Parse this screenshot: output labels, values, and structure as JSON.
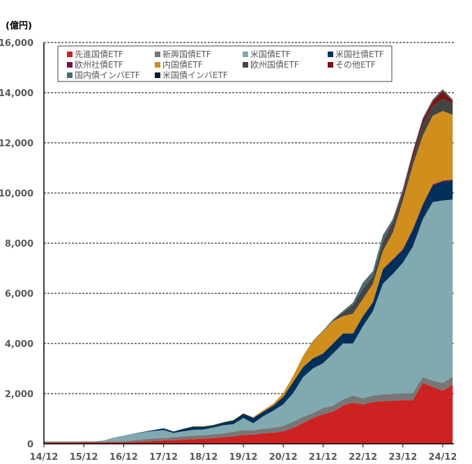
{
  "chart_data": {
    "type": "area",
    "stacked": true,
    "unit_label": "(億円)",
    "ylim": [
      0,
      16000
    ],
    "yticks": [
      0,
      2000,
      4000,
      6000,
      8000,
      10000,
      12000,
      14000,
      16000
    ],
    "ytick_labels": [
      "0",
      "2,000",
      "4,000",
      "6,000",
      "8,000",
      "10,000",
      "12,000",
      "14,000",
      "16,000"
    ],
    "xtick_labels": [
      "14/12",
      "15/12",
      "16/12",
      "17/12",
      "18/12",
      "19/12",
      "20/12",
      "21/12",
      "22/12",
      "23/12",
      "24/12"
    ],
    "grid": "horizontal dashed",
    "legend_placement": "top",
    "x": [
      "14/12",
      "15/03",
      "15/06",
      "15/09",
      "15/12",
      "16/03",
      "16/06",
      "16/09",
      "16/12",
      "17/03",
      "17/06",
      "17/09",
      "17/12",
      "18/03",
      "18/06",
      "18/09",
      "18/12",
      "19/03",
      "19/06",
      "19/09",
      "19/12",
      "20/03",
      "20/06",
      "20/09",
      "20/12",
      "21/03",
      "21/06",
      "21/09",
      "21/12",
      "22/03",
      "22/06",
      "22/09",
      "22/12",
      "23/03",
      "23/06",
      "23/09",
      "23/12",
      "24/03",
      "24/06",
      "24/09",
      "24/12",
      "25/03"
    ],
    "series": [
      {
        "name": "先進国債ETF",
        "color": "#CC2222",
        "values": [
          50,
          50,
          50,
          50,
          55,
          55,
          60,
          60,
          60,
          75,
          90,
          110,
          140,
          150,
          170,
          185,
          200,
          230,
          260,
          300,
          350,
          370,
          420,
          440,
          500,
          630,
          830,
          1030,
          1180,
          1280,
          1520,
          1640,
          1570,
          1670,
          1700,
          1720,
          1740,
          1740,
          2420,
          2270,
          2120,
          2370
        ]
      },
      {
        "name": "新興国債ETF",
        "color": "#777777",
        "values": [
          40,
          40,
          40,
          40,
          40,
          40,
          40,
          40,
          40,
          60,
          90,
          100,
          90,
          110,
          130,
          140,
          140,
          150,
          150,
          180,
          200,
          180,
          180,
          200,
          210,
          250,
          250,
          200,
          250,
          240,
          250,
          280,
          250,
          250,
          270,
          270,
          260,
          280,
          240,
          250,
          300,
          320
        ]
      },
      {
        "name": "米国債ETF",
        "color": "#80AAAF",
        "values": [
          0,
          0,
          0,
          0,
          0,
          0,
          30,
          150,
          230,
          260,
          280,
          300,
          320,
          170,
          200,
          230,
          230,
          270,
          330,
          300,
          480,
          270,
          500,
          680,
          860,
          1140,
          1580,
          1780,
          1780,
          2080,
          2230,
          2080,
          2870,
          3370,
          4410,
          4780,
          5220,
          5840,
          6290,
          7120,
          7280,
          7050
        ]
      },
      {
        "name": "米国社債ETF",
        "color": "#00305A",
        "values": [
          0,
          0,
          0,
          0,
          0,
          0,
          0,
          0,
          0,
          10,
          20,
          40,
          67,
          60,
          100,
          130,
          110,
          90,
          110,
          150,
          170,
          210,
          180,
          200,
          300,
          450,
          400,
          400,
          390,
          400,
          400,
          400,
          400,
          350,
          560,
          560,
          500,
          660,
          560,
          660,
          750,
          760
        ]
      },
      {
        "name": "欧州社債ETF",
        "color": "#7A0F45",
        "values": [
          0,
          0,
          0,
          0,
          0,
          0,
          0,
          0,
          0,
          0,
          0,
          0,
          0,
          0,
          0,
          0,
          0,
          0,
          0,
          0,
          0,
          0,
          0,
          0,
          0,
          0,
          0,
          0,
          0,
          0,
          0,
          0,
          0,
          20,
          30,
          30,
          40,
          40,
          40,
          40,
          40,
          40
        ]
      },
      {
        "name": "内国債ETF",
        "color": "#D08E1C",
        "values": [
          0,
          0,
          0,
          0,
          0,
          0,
          0,
          0,
          0,
          0,
          0,
          0,
          0,
          0,
          0,
          20,
          20,
          20,
          20,
          20,
          20,
          30,
          60,
          80,
          150,
          240,
          440,
          690,
          890,
          890,
          690,
          790,
          690,
          720,
          720,
          1060,
          1940,
          2540,
          2740,
          2740,
          2780,
          2580
        ]
      },
      {
        "name": "欧州国債ETF",
        "color": "#444444",
        "values": [
          0,
          0,
          0,
          0,
          0,
          0,
          0,
          0,
          0,
          0,
          0,
          0,
          0,
          0,
          0,
          0,
          0,
          0,
          0,
          0,
          0,
          0,
          0,
          0,
          0,
          0,
          0,
          0,
          0,
          20,
          150,
          340,
          400,
          290,
          340,
          300,
          250,
          290,
          440,
          390,
          490,
          450
        ]
      },
      {
        "name": "その他ETF",
        "color": "#7B1414",
        "values": [
          0,
          0,
          0,
          0,
          0,
          0,
          0,
          0,
          0,
          0,
          0,
          0,
          0,
          0,
          0,
          0,
          0,
          0,
          0,
          0,
          0,
          0,
          0,
          0,
          0,
          0,
          0,
          0,
          0,
          0,
          0,
          0,
          0,
          20,
          40,
          100,
          100,
          200,
          190,
          190,
          300,
          90
        ]
      },
      {
        "name": "国内債インバETF",
        "color": "#466E72",
        "values": [
          0,
          0,
          0,
          0,
          0,
          0,
          0,
          0,
          0,
          0,
          0,
          0,
          0,
          0,
          0,
          0,
          0,
          0,
          0,
          0,
          0,
          0,
          0,
          0,
          0,
          0,
          10,
          20,
          30,
          50,
          60,
          100,
          250,
          190,
          250,
          150,
          100,
          60,
          60,
          60,
          60,
          60
        ]
      },
      {
        "name": "米国債インバETF",
        "color": "#0A1A30",
        "values": [
          0,
          0,
          0,
          0,
          0,
          0,
          0,
          0,
          0,
          0,
          0,
          0,
          0,
          0,
          0,
          0,
          0,
          0,
          0,
          0,
          0,
          0,
          0,
          0,
          0,
          0,
          0,
          0,
          0,
          0,
          0,
          0,
          0,
          0,
          0,
          0,
          10,
          10,
          10,
          10,
          10,
          10
        ]
      }
    ]
  }
}
